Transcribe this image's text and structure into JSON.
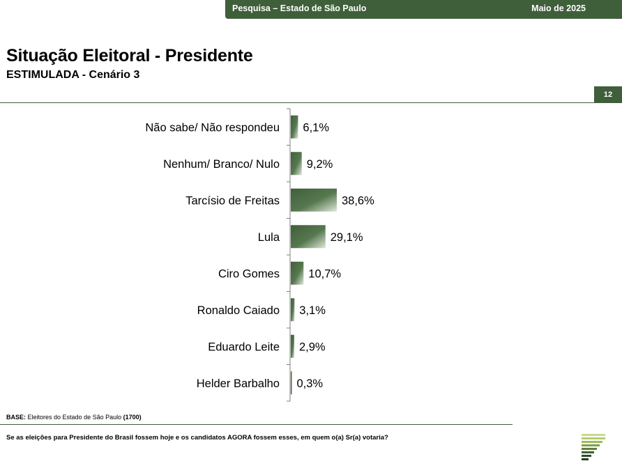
{
  "header": {
    "survey": "Pesquisa – Estado de São Paulo",
    "date": "Maio de 2025"
  },
  "page": {
    "title": "Situação Eleitoral - Presidente",
    "subtitle": "ESTIMULADA - Cenário 3",
    "number": "12"
  },
  "footer": {
    "base_label": "BASE:",
    "base_text": "Eleitores do Estado de São Paulo",
    "base_count": "(1700)",
    "question": "Se as eleições para Presidente do Brasil fossem hoje e os candidatos AGORA fossem esses, em quem o(a) Sr(a) votaria?"
  },
  "colors": {
    "brand": "#3f5f3a",
    "bar": "#4a6b44"
  },
  "chart_data": {
    "type": "bar",
    "orientation": "horizontal",
    "categories": [
      "Não sabe/ Não respondeu",
      "Nenhum/ Branco/ Nulo",
      "Tarcísio de Freitas",
      "Lula",
      "Ciro Gomes",
      "Ronaldo Caiado",
      "Eduardo Leite",
      "Helder Barbalho"
    ],
    "values": [
      6.1,
      9.2,
      38.6,
      29.1,
      10.7,
      3.1,
      2.9,
      0.3
    ],
    "value_labels": [
      "6,1%",
      "9,2%",
      "38,6%",
      "29,1%",
      "10,7%",
      "3,1%",
      "2,9%",
      "0,3%"
    ],
    "xlim": [
      0,
      100
    ],
    "grid": false,
    "legend": "none"
  }
}
